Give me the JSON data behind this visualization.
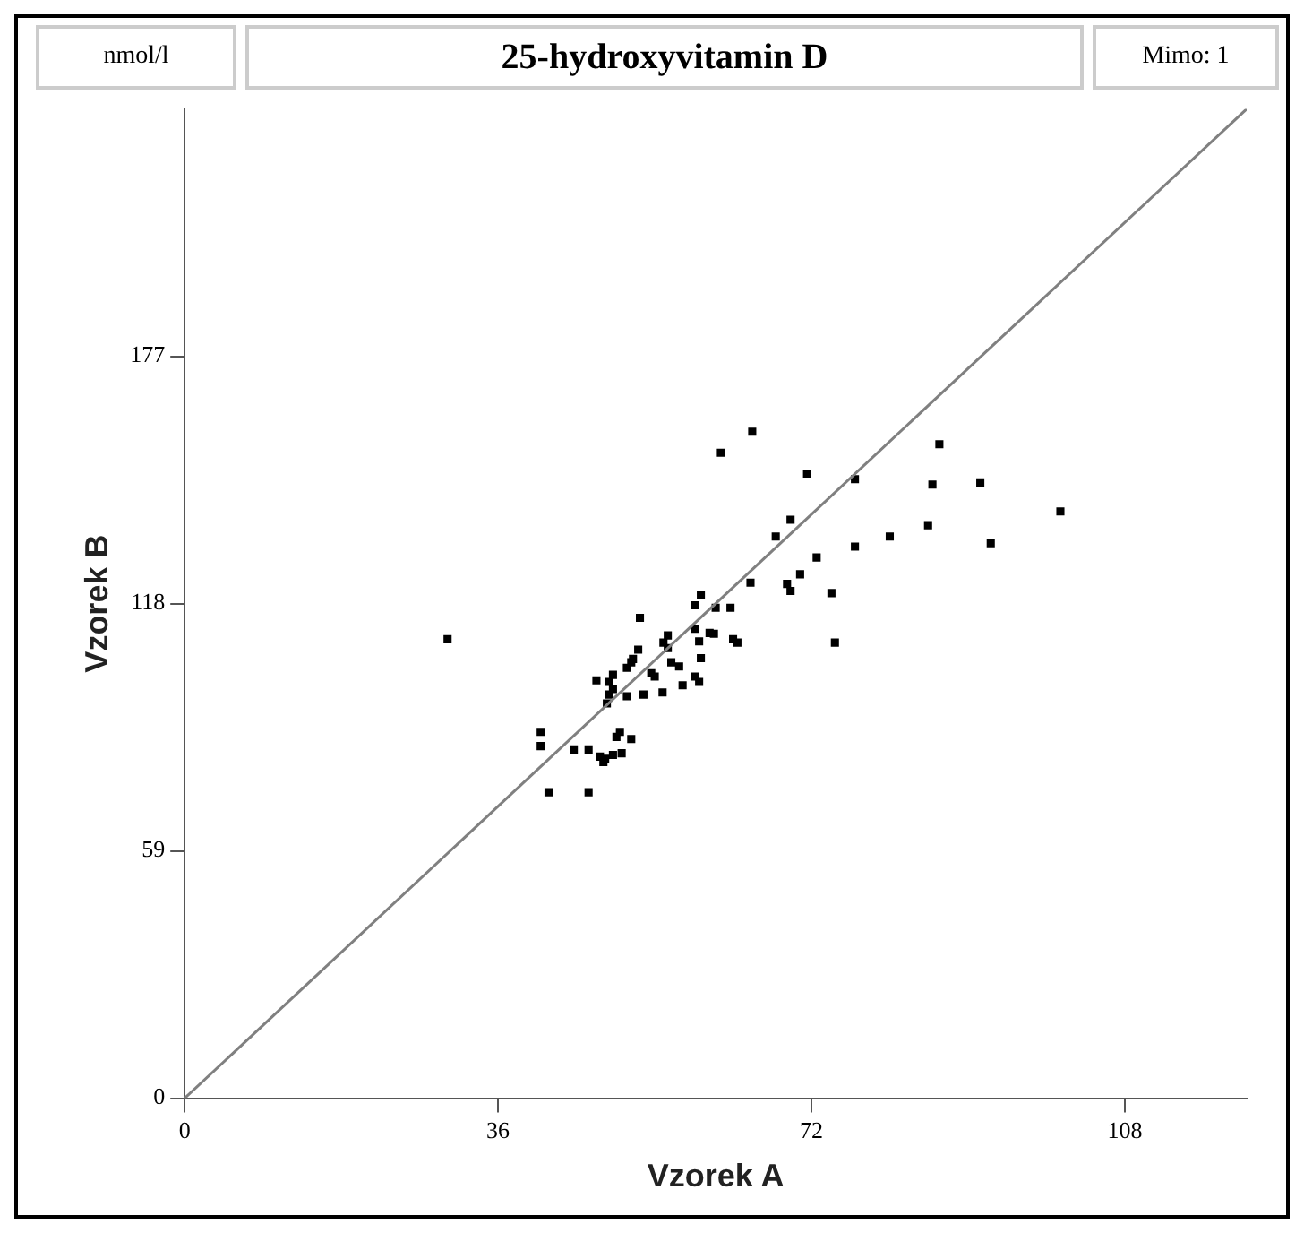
{
  "chart_data": {
    "type": "scatter",
    "title": "25-hydroxyvitamin D",
    "xlabel": "Vzorek A",
    "ylabel": "Vzorek B",
    "annotations": [
      "nmol/l",
      "Mimo: 1"
    ],
    "xlim": [
      0,
      122
    ],
    "ylim": [
      0,
      236
    ],
    "xticks": [
      0,
      36,
      72,
      108
    ],
    "yticks": [
      0,
      59,
      118,
      177
    ],
    "grid": false,
    "legend": false,
    "series": [
      {
        "type": "line",
        "marker": "none",
        "color": "#808080",
        "x": [
          0,
          122
        ],
        "values": [
          0,
          236
        ]
      },
      {
        "marker": "square",
        "color": "#000000",
        "x": [
          30.2,
          65.2,
          61.6,
          71.5,
          69.6,
          67.9,
          72.6,
          65,
          69.2,
          69.6,
          70.7,
          59.3,
          58.6,
          61,
          62.7,
          52.3,
          58.6,
          60.3,
          60.8,
          55.5,
          55,
          55.5,
          59.1,
          63,
          63.5,
          52.1,
          51.5,
          51.3,
          50.8,
          55.9,
          56.8,
          59.3,
          53.6,
          54,
          58.6,
          59.1,
          57.2,
          49.2,
          47.3,
          48.7,
          49.2,
          48.7,
          50.8,
          52.7,
          54.9,
          48.5,
          40.9,
          40.9,
          50,
          49.6,
          51.3,
          44.7,
          46.4,
          47.7,
          48.1,
          49.2,
          50.2,
          48.3,
          41.8,
          46.4,
          86.7,
          77,
          85.9,
          91.4,
          100.6,
          85.4,
          81,
          77,
          92.6,
          74.3,
          74.7
        ],
        "values": [
          109.5,
          159,
          154,
          149,
          138,
          134,
          129,
          123,
          122.7,
          121,
          125,
          120,
          117.6,
          117,
          117,
          114.6,
          112,
          111,
          110.8,
          110.4,
          108.7,
          107.4,
          109,
          109.5,
          108.7,
          107,
          104.8,
          104,
          102.7,
          104,
          103,
          105,
          101.4,
          100.6,
          100.6,
          99.3,
          98.5,
          101,
          99.7,
          99.3,
          97.6,
          96.3,
          95.9,
          96.3,
          96.8,
          94.2,
          87.4,
          84,
          87.4,
          86.2,
          85.7,
          83.2,
          83.2,
          81.5,
          80.2,
          81.9,
          82.3,
          81,
          73,
          73,
          156,
          147.7,
          146.4,
          146.9,
          140,
          136.7,
          134,
          131.6,
          132.4,
          120.5,
          108.7
        ]
      }
    ]
  }
}
